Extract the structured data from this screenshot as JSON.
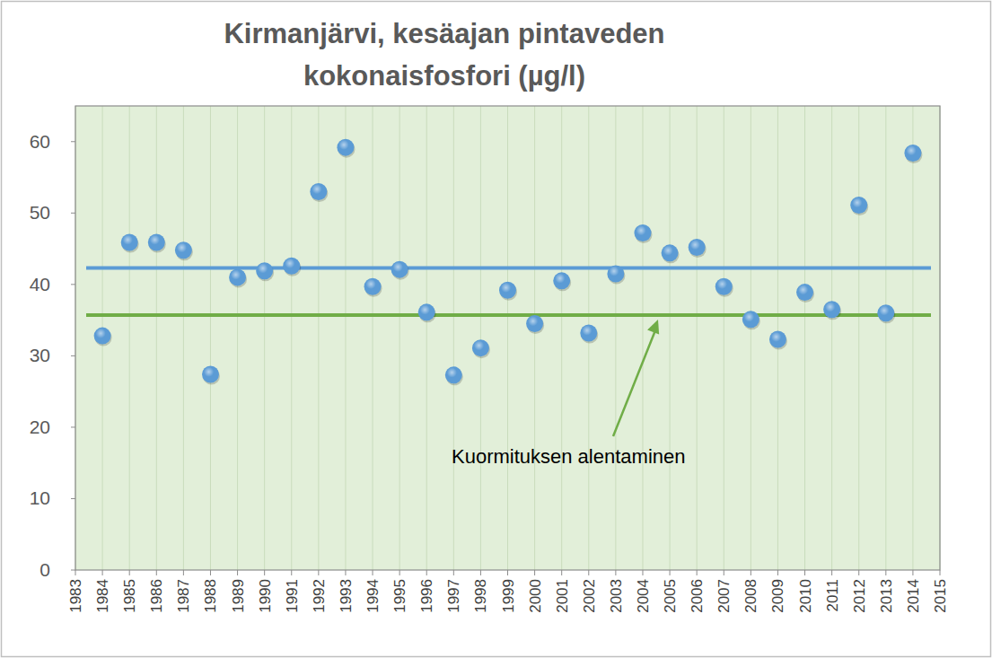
{
  "chart_data": {
    "type": "scatter",
    "title": [
      "Kirmanjärvi,  kesäajan pintaveden",
      "kokonaisfosfori (µg/l)"
    ],
    "x": [
      1984,
      1985,
      1986,
      1987,
      1988,
      1989,
      1990,
      1991,
      1992,
      1993,
      1994,
      1995,
      1996,
      1997,
      1998,
      1999,
      2000,
      2001,
      2002,
      2003,
      2004,
      2005,
      2006,
      2007,
      2008,
      2009,
      2010,
      2011,
      2012,
      2013,
      2014
    ],
    "values": [
      32.8,
      45.9,
      45.9,
      44.8,
      27.4,
      41.0,
      41.9,
      42.6,
      53.0,
      59.2,
      39.7,
      42.1,
      36.1,
      27.3,
      31.1,
      39.2,
      34.5,
      40.5,
      33.2,
      41.5,
      47.2,
      44.4,
      45.2,
      39.7,
      35.1,
      32.3,
      38.9,
      36.5,
      51.1,
      36.0,
      58.4
    ],
    "color": "#5b9bd5",
    "marker": "circle",
    "xlim": [
      1983,
      2015
    ],
    "xticks": [
      1983,
      1984,
      1985,
      1986,
      1987,
      1988,
      1989,
      1990,
      1991,
      1992,
      1993,
      1994,
      1995,
      1996,
      1997,
      1998,
      1999,
      2000,
      2001,
      2002,
      2003,
      2004,
      2005,
      2006,
      2007,
      2008,
      2009,
      2010,
      2011,
      2012,
      2013,
      2014,
      2015
    ],
    "ylim": [
      0,
      65
    ],
    "yticks": [
      0,
      10,
      20,
      30,
      40,
      50,
      60
    ],
    "grid": true,
    "reference_lines": [
      {
        "value": 42.3,
        "color": "#5b9bd5"
      },
      {
        "value": 35.7,
        "color": "#70ad47"
      }
    ],
    "annotation": "Kuormituksen alentaminen"
  }
}
